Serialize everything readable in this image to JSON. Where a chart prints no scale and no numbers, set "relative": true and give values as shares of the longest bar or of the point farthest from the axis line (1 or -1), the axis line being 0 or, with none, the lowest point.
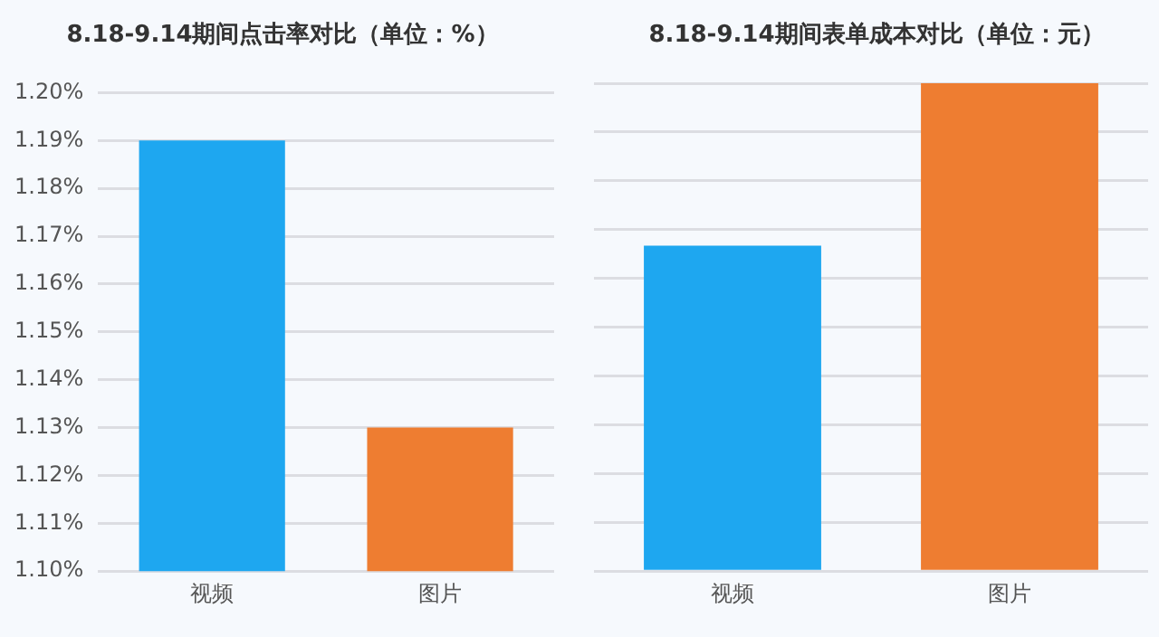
{
  "chart_data": [
    {
      "type": "bar",
      "title": "8.18-9.14期间点击率对比（单位：%）",
      "categories": [
        "视频",
        "图片"
      ],
      "values": [
        1.19,
        1.13
      ],
      "colors": [
        "#1ea7f0",
        "#ee7d31"
      ],
      "ylim": [
        1.1,
        1.2
      ],
      "yticks": [
        {
          "value": 1.1,
          "label": "1.10%"
        },
        {
          "value": 1.11,
          "label": "1.11%"
        },
        {
          "value": 1.12,
          "label": "1.12%"
        },
        {
          "value": 1.13,
          "label": "1.13%"
        },
        {
          "value": 1.14,
          "label": "1.14%"
        },
        {
          "value": 1.15,
          "label": "1.15%"
        },
        {
          "value": 1.16,
          "label": "1.16%"
        },
        {
          "value": 1.17,
          "label": "1.17%"
        },
        {
          "value": 1.18,
          "label": "1.18%"
        },
        {
          "value": 1.19,
          "label": "1.19%"
        },
        {
          "value": 1.2,
          "label": "1.20%"
        }
      ],
      "grid": "y",
      "legend": false
    },
    {
      "type": "bar",
      "title": "8.18-9.14期间表单成本对比（单位：元）",
      "categories": [
        "视频",
        "图片"
      ],
      "values": [
        0.667,
        1
      ],
      "colors": [
        "#1ea7f0",
        "#ee7d31"
      ],
      "relative": true,
      "grid": "y",
      "legend": false
    }
  ]
}
